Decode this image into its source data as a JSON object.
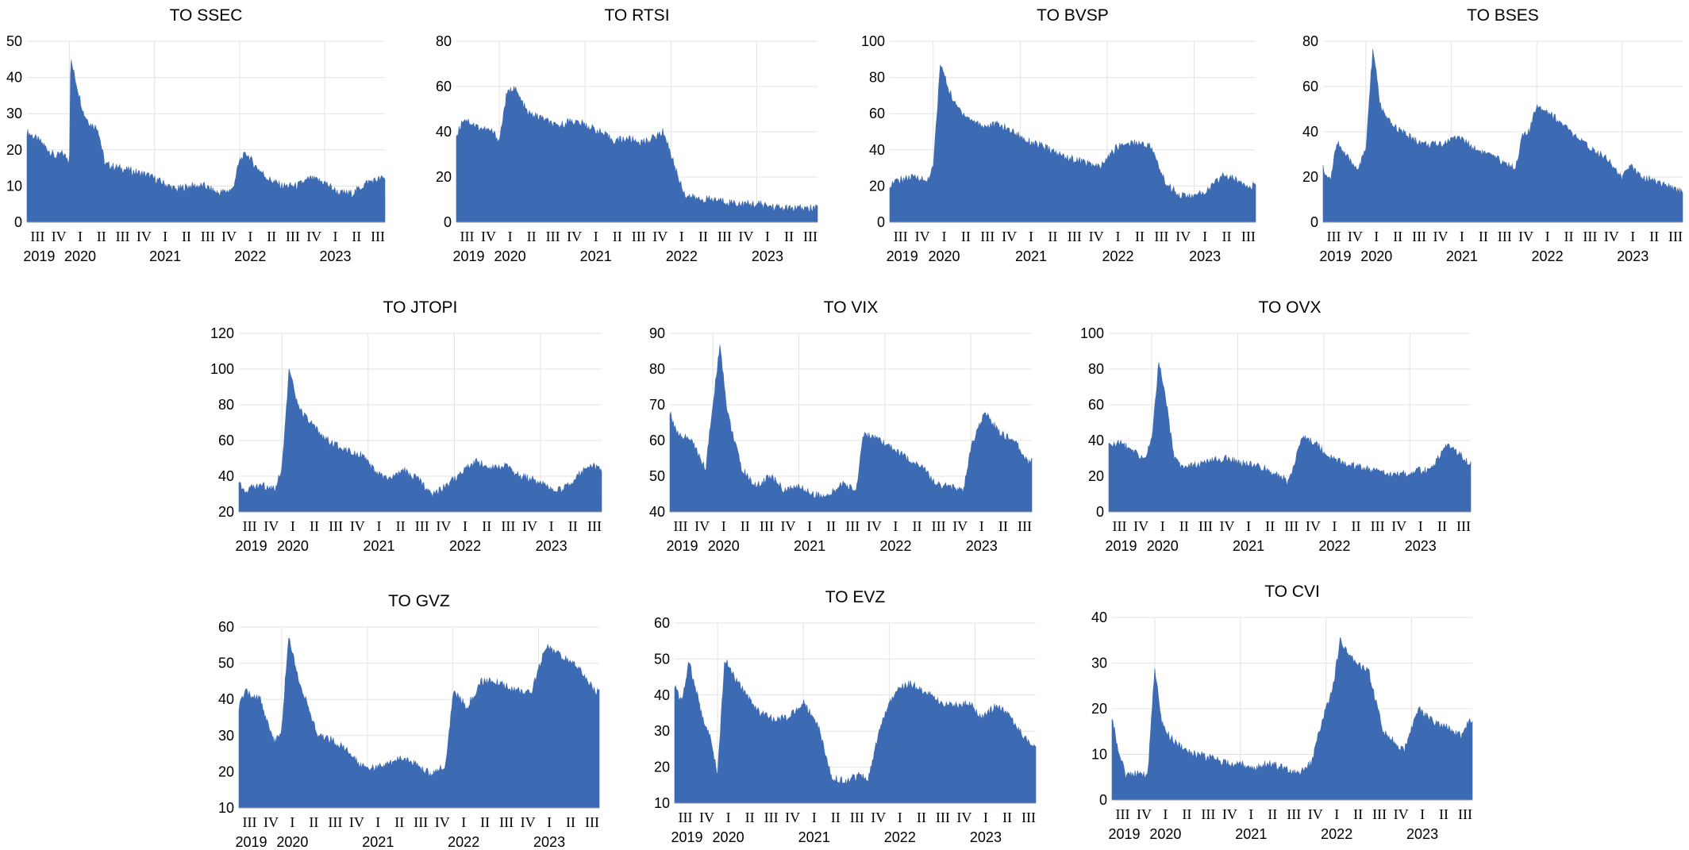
{
  "figure": {
    "fill_color": "#3d6bb3",
    "grid_color": "#e3e3e3",
    "background": "#ffffff"
  },
  "chart_data": [
    {
      "type": "area",
      "title": "TO SSEC",
      "ylim": [
        0,
        50
      ],
      "yticks": [
        0,
        10,
        20,
        30,
        40,
        50
      ],
      "quarter_labels": [
        "III",
        "IV",
        "I",
        "II",
        "III",
        "IV",
        "I",
        "II",
        "III",
        "IV",
        "I",
        "II",
        "III",
        "IV",
        "I",
        "II",
        "III"
      ],
      "year_labels": [
        "2019",
        "2020",
        "2021",
        "2022",
        "2023"
      ],
      "x": [
        "2019-07",
        "2019-09",
        "2019-11",
        "2019-12",
        "2020-01",
        "2020-01",
        "2020-02",
        "2020-03",
        "2020-04",
        "2020-05",
        "2020-06",
        "2020-08",
        "2020-10",
        "2020-12",
        "2021-02",
        "2021-04",
        "2021-06",
        "2021-08",
        "2021-10",
        "2021-12",
        "2022-01",
        "2022-02",
        "2022-03",
        "2022-05",
        "2022-07",
        "2022-09",
        "2022-11",
        "2023-01",
        "2023-03",
        "2023-05",
        "2023-07",
        "2023-09"
      ],
      "values": [
        25,
        22,
        18,
        19,
        17,
        45,
        38,
        30,
        27,
        26,
        16,
        15,
        14,
        13,
        11,
        9,
        10,
        10,
        8,
        9,
        17,
        19,
        16,
        12,
        10,
        10,
        12,
        11,
        8,
        8,
        11,
        12
      ]
    },
    {
      "type": "area",
      "title": "TO RTSI",
      "ylim": [
        0,
        80
      ],
      "yticks": [
        0,
        20,
        40,
        60,
        80
      ],
      "quarter_labels": [
        "III",
        "IV",
        "I",
        "II",
        "III",
        "IV",
        "I",
        "II",
        "III",
        "IV",
        "I",
        "II",
        "III",
        "IV",
        "I",
        "II",
        "III"
      ],
      "year_labels": [
        "2019",
        "2020",
        "2021",
        "2022",
        "2023"
      ],
      "x": [
        "2019-07",
        "2019-08",
        "2019-10",
        "2019-12",
        "2020-01",
        "2020-02",
        "2020-03",
        "2020-05",
        "2020-07",
        "2020-09",
        "2020-11",
        "2021-01",
        "2021-03",
        "2021-05",
        "2021-07",
        "2021-09",
        "2021-11",
        "2021-12",
        "2022-01",
        "2022-02",
        "2022-03",
        "2022-05",
        "2022-07",
        "2022-09",
        "2022-11",
        "2023-01",
        "2023-03",
        "2023-05",
        "2023-07",
        "2023-09"
      ],
      "values": [
        38,
        46,
        42,
        40,
        36,
        56,
        60,
        48,
        46,
        42,
        45,
        43,
        40,
        36,
        37,
        35,
        38,
        40,
        30,
        20,
        12,
        10,
        10,
        9,
        8,
        8,
        7,
        6,
        6,
        6
      ]
    },
    {
      "type": "area",
      "title": "TO BVSP",
      "ylim": [
        0,
        100
      ],
      "yticks": [
        0,
        20,
        40,
        60,
        80,
        100
      ],
      "quarter_labels": [
        "III",
        "IV",
        "I",
        "II",
        "III",
        "IV",
        "I",
        "II",
        "III",
        "IV",
        "I",
        "II",
        "III",
        "IV",
        "I",
        "II",
        "III"
      ],
      "year_labels": [
        "2019",
        "2020",
        "2021",
        "2022",
        "2023"
      ],
      "x": [
        "2019-07",
        "2019-09",
        "2019-11",
        "2019-12",
        "2020-01",
        "2020-02",
        "2020-03",
        "2020-04",
        "2020-06",
        "2020-08",
        "2020-10",
        "2020-12",
        "2021-02",
        "2021-04",
        "2021-06",
        "2021-08",
        "2021-10",
        "2021-12",
        "2022-02",
        "2022-03",
        "2022-05",
        "2022-07",
        "2022-09",
        "2022-11",
        "2023-01",
        "2023-03",
        "2023-05",
        "2023-07",
        "2023-09"
      ],
      "values": [
        21,
        24,
        25,
        22,
        30,
        88,
        75,
        65,
        57,
        53,
        54,
        50,
        45,
        42,
        38,
        35,
        33,
        30,
        40,
        43,
        44,
        42,
        22,
        15,
        14,
        18,
        26,
        23,
        20
      ]
    },
    {
      "type": "area",
      "title": "TO BSES",
      "ylim": [
        0,
        80
      ],
      "yticks": [
        0,
        20,
        40,
        60,
        80
      ],
      "quarter_labels": [
        "III",
        "IV",
        "I",
        "II",
        "III",
        "IV",
        "I",
        "II",
        "III",
        "IV",
        "I",
        "II",
        "III",
        "IV",
        "I",
        "II",
        "III"
      ],
      "year_labels": [
        "2019",
        "2020",
        "2021",
        "2022",
        "2023"
      ],
      "x": [
        "2019-07",
        "2019-08",
        "2019-09",
        "2019-10",
        "2019-11",
        "2019-12",
        "2020-01",
        "2020-02",
        "2020-03",
        "2020-04",
        "2020-06",
        "2020-08",
        "2020-10",
        "2020-12",
        "2021-02",
        "2021-04",
        "2021-06",
        "2021-08",
        "2021-10",
        "2021-11",
        "2021-12",
        "2022-01",
        "2022-03",
        "2022-05",
        "2022-07",
        "2022-09",
        "2022-11",
        "2023-01",
        "2023-02",
        "2023-04",
        "2023-06",
        "2023-08",
        "2023-09"
      ],
      "values": [
        24,
        18,
        36,
        30,
        26,
        24,
        32,
        77,
        52,
        45,
        40,
        36,
        34,
        35,
        38,
        33,
        30,
        27,
        24,
        38,
        40,
        52,
        48,
        42,
        36,
        32,
        28,
        19,
        25,
        20,
        18,
        15,
        14
      ]
    },
    {
      "type": "area",
      "title": "TO JTOPI",
      "ylim": [
        20,
        120
      ],
      "yticks": [
        20,
        40,
        60,
        80,
        100,
        120
      ],
      "quarter_labels": [
        "III",
        "IV",
        "I",
        "II",
        "III",
        "IV",
        "I",
        "II",
        "III",
        "IV",
        "I",
        "II",
        "III",
        "IV",
        "I",
        "II",
        "III"
      ],
      "year_labels": [
        "2019",
        "2020",
        "2021",
        "2022",
        "2023"
      ],
      "x": [
        "2019-07",
        "2019-08",
        "2019-10",
        "2019-12",
        "2020-01",
        "2020-02",
        "2020-03",
        "2020-04",
        "2020-06",
        "2020-08",
        "2020-10",
        "2020-12",
        "2021-02",
        "2021-04",
        "2021-06",
        "2021-08",
        "2021-10",
        "2021-12",
        "2022-02",
        "2022-04",
        "2022-06",
        "2022-08",
        "2022-10",
        "2022-12",
        "2023-02",
        "2023-04",
        "2023-06",
        "2023-08",
        "2023-09"
      ],
      "values": [
        36,
        32,
        35,
        33,
        45,
        100,
        82,
        74,
        65,
        58,
        55,
        52,
        42,
        38,
        43,
        38,
        30,
        35,
        42,
        48,
        45,
        46,
        40,
        38,
        34,
        32,
        40,
        46,
        44
      ]
    },
    {
      "type": "area",
      "title": "TO VIX",
      "ylim": [
        40,
        90
      ],
      "yticks": [
        40,
        50,
        60,
        70,
        80,
        90
      ],
      "quarter_labels": [
        "III",
        "IV",
        "I",
        "II",
        "III",
        "IV",
        "I",
        "II",
        "III",
        "IV",
        "I",
        "II",
        "III",
        "IV",
        "I",
        "II",
        "III"
      ],
      "year_labels": [
        "2019",
        "2020",
        "2021",
        "2022",
        "2023"
      ],
      "x": [
        "2019-07",
        "2019-08",
        "2019-10",
        "2019-12",
        "2020-01",
        "2020-02",
        "2020-03",
        "2020-04",
        "2020-05",
        "2020-07",
        "2020-09",
        "2020-11",
        "2021-01",
        "2021-03",
        "2021-05",
        "2021-07",
        "2021-09",
        "2021-10",
        "2021-12",
        "2022-02",
        "2022-04",
        "2022-06",
        "2022-08",
        "2022-10",
        "2022-12",
        "2023-01",
        "2023-03",
        "2023-05",
        "2023-07",
        "2023-09"
      ],
      "values": [
        68,
        62,
        60,
        52,
        70,
        87,
        68,
        60,
        52,
        47,
        50,
        46,
        47,
        45,
        44,
        48,
        46,
        62,
        60,
        58,
        55,
        53,
        48,
        47,
        46,
        58,
        68,
        62,
        60,
        54
      ]
    },
    {
      "type": "area",
      "title": "TO OVX",
      "ylim": [
        0,
        100
      ],
      "yticks": [
        0,
        20,
        40,
        60,
        80,
        100
      ],
      "quarter_labels": [
        "III",
        "IV",
        "I",
        "II",
        "III",
        "IV",
        "I",
        "II",
        "III",
        "IV",
        "I",
        "II",
        "III",
        "IV",
        "I",
        "II",
        "III"
      ],
      "year_labels": [
        "2019",
        "2020",
        "2021",
        "2022",
        "2023"
      ],
      "x": [
        "2019-07",
        "2019-09",
        "2019-11",
        "2019-12",
        "2020-01",
        "2020-02",
        "2020-03",
        "2020-04",
        "2020-05",
        "2020-07",
        "2020-09",
        "2020-11",
        "2021-01",
        "2021-03",
        "2021-05",
        "2021-07",
        "2021-08",
        "2021-10",
        "2021-12",
        "2022-02",
        "2022-04",
        "2022-06",
        "2022-08",
        "2022-10",
        "2022-12",
        "2023-02",
        "2023-04",
        "2023-06",
        "2023-08",
        "2023-09"
      ],
      "values": [
        38,
        38,
        32,
        30,
        40,
        85,
        62,
        32,
        26,
        26,
        28,
        30,
        28,
        26,
        24,
        20,
        16,
        42,
        38,
        30,
        27,
        25,
        23,
        21,
        21,
        23,
        23,
        38,
        32,
        28
      ]
    },
    {
      "type": "area",
      "title": "TO GVZ",
      "ylim": [
        10,
        60
      ],
      "yticks": [
        10,
        20,
        30,
        40,
        50,
        60
      ],
      "quarter_labels": [
        "III",
        "IV",
        "I",
        "II",
        "III",
        "IV",
        "I",
        "II",
        "III",
        "IV",
        "I",
        "II",
        "III",
        "IV",
        "I",
        "II",
        "III"
      ],
      "year_labels": [
        "2019",
        "2020",
        "2021",
        "2022",
        "2023"
      ],
      "x": [
        "2019-07",
        "2019-08",
        "2019-10",
        "2019-12",
        "2020-01",
        "2020-02",
        "2020-03",
        "2020-04",
        "2020-06",
        "2020-08",
        "2020-10",
        "2020-12",
        "2021-02",
        "2021-04",
        "2021-06",
        "2021-08",
        "2021-10",
        "2021-12",
        "2022-01",
        "2022-03",
        "2022-05",
        "2022-07",
        "2022-09",
        "2022-11",
        "2022-12",
        "2023-02",
        "2023-04",
        "2023-06",
        "2023-08",
        "2023-09"
      ],
      "values": [
        38,
        42,
        40,
        28,
        32,
        58,
        48,
        42,
        30,
        29,
        26,
        22,
        21,
        22,
        24,
        22,
        19,
        22,
        42,
        38,
        45,
        45,
        43,
        42,
        42,
        55,
        52,
        50,
        45,
        42
      ]
    },
    {
      "type": "area",
      "title": "TO EVZ",
      "ylim": [
        10,
        60
      ],
      "yticks": [
        10,
        20,
        30,
        40,
        50,
        60
      ],
      "quarter_labels": [
        "III",
        "IV",
        "I",
        "II",
        "III",
        "IV",
        "I",
        "II",
        "III",
        "IV",
        "I",
        "II",
        "III",
        "IV",
        "I",
        "II",
        "III"
      ],
      "year_labels": [
        "2019",
        "2020",
        "2021",
        "2022",
        "2023"
      ],
      "x": [
        "2019-07",
        "2019-08",
        "2019-09",
        "2019-11",
        "2019-12",
        "2020-01",
        "2020-02",
        "2020-03",
        "2020-05",
        "2020-07",
        "2020-09",
        "2020-11",
        "2021-01",
        "2021-03",
        "2021-05",
        "2021-07",
        "2021-09",
        "2021-10",
        "2021-12",
        "2022-02",
        "2022-04",
        "2022-06",
        "2022-08",
        "2022-10",
        "2022-12",
        "2023-02",
        "2023-04",
        "2023-06",
        "2023-08",
        "2023-09"
      ],
      "values": [
        42,
        38,
        49,
        33,
        28,
        18,
        50,
        46,
        40,
        35,
        33,
        34,
        38,
        32,
        17,
        16,
        18,
        16,
        33,
        42,
        43,
        41,
        38,
        37,
        38,
        34,
        37,
        34,
        28,
        26
      ]
    },
    {
      "type": "area",
      "title": "TO CVI",
      "ylim": [
        0,
        40
      ],
      "yticks": [
        0,
        10,
        20,
        30,
        40
      ],
      "quarter_labels": [
        "III",
        "IV",
        "I",
        "II",
        "III",
        "IV",
        "I",
        "II",
        "III",
        "IV",
        "I",
        "II",
        "III",
        "IV",
        "I",
        "II",
        "III"
      ],
      "year_labels": [
        "2019",
        "2020",
        "2021",
        "2022",
        "2023"
      ],
      "x": [
        "2019-07",
        "2019-08",
        "2019-09",
        "2019-11",
        "2019-12",
        "2020-01",
        "2020-02",
        "2020-03",
        "2020-05",
        "2020-07",
        "2020-09",
        "2020-11",
        "2021-01",
        "2021-03",
        "2021-05",
        "2021-07",
        "2021-09",
        "2021-11",
        "2021-12",
        "2022-02",
        "2022-03",
        "2022-05",
        "2022-07",
        "2022-09",
        "2022-11",
        "2022-12",
        "2023-02",
        "2023-04",
        "2023-06",
        "2023-08",
        "2023-09"
      ],
      "values": [
        18,
        10,
        5,
        6,
        5,
        29,
        17,
        14,
        11,
        10,
        9,
        8,
        8,
        7,
        8,
        7,
        6,
        8,
        15,
        25,
        35,
        30,
        28,
        15,
        12,
        11,
        20,
        17,
        16,
        14,
        17
      ]
    }
  ]
}
